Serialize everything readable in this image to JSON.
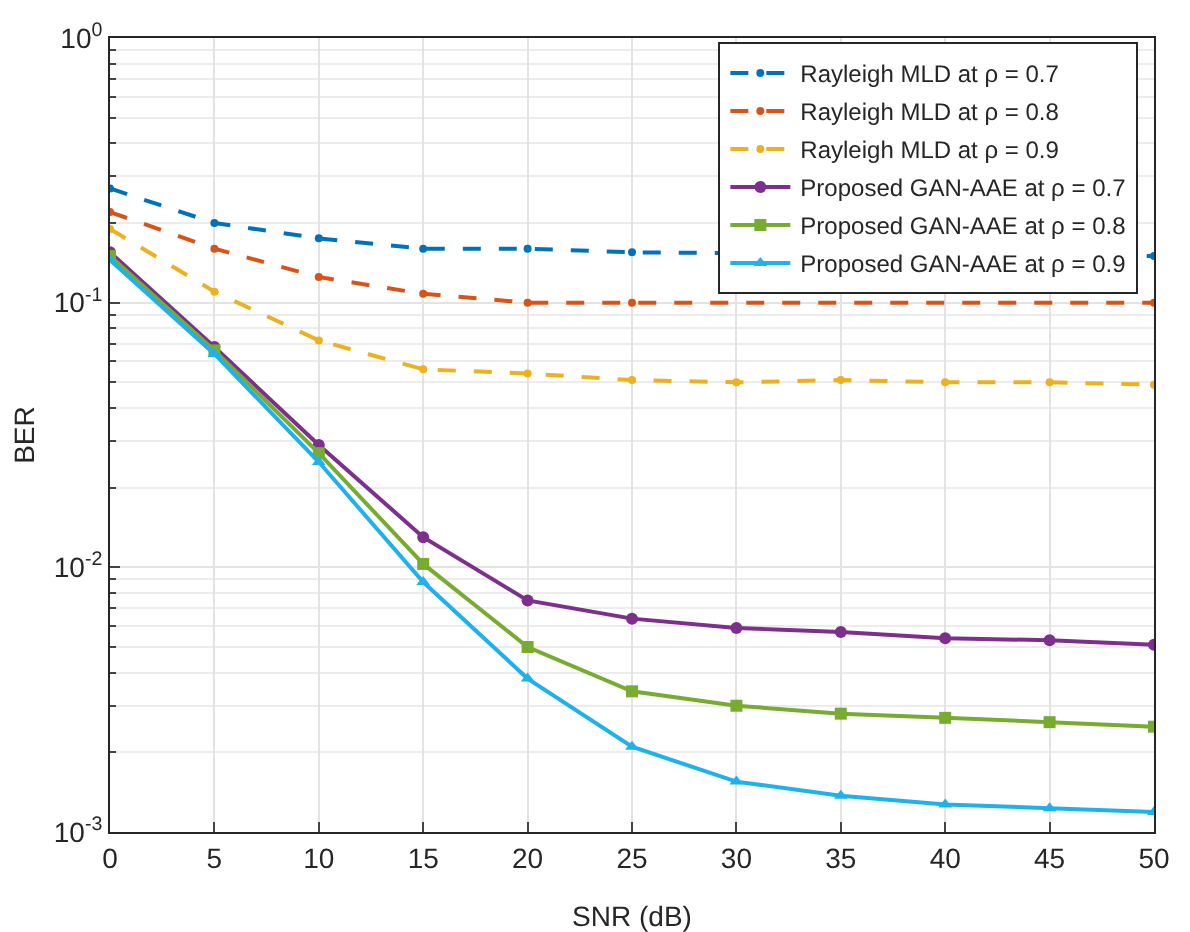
{
  "chart_data": {
    "type": "line",
    "xlabel": "SNR (dB)",
    "ylabel": "BER",
    "log": "y",
    "grid": true,
    "legend": "top right",
    "x": [
      0,
      5,
      10,
      15,
      20,
      25,
      30,
      35,
      40,
      45,
      50
    ],
    "xlim": [
      0,
      50
    ],
    "xticks": [
      0,
      5,
      10,
      15,
      20,
      25,
      30,
      35,
      40,
      45,
      50
    ],
    "ylim": [
      0.001,
      1
    ],
    "yticks": [
      {
        "value": 0.001,
        "label": "10$^{-3}$"
      },
      {
        "value": 0.01,
        "label": "10$^{-2}$"
      },
      {
        "value": 0.1,
        "label": "10$^{-1}$"
      },
      {
        "value": 1,
        "label": "10$^{0}$"
      }
    ],
    "series": [
      {
        "name": "Rayleigh MLD at ρ = 0.7",
        "color": "#0072bd",
        "line_style": "dashed",
        "marker": "circle",
        "values": [
          0.27,
          0.2,
          0.175,
          0.16,
          0.16,
          0.155,
          null,
          null,
          null,
          null,
          0.15
        ]
      },
      {
        "name": "Rayleigh MLD at ρ = 0.8",
        "color": "#d95319",
        "line_style": "dashed",
        "marker": "circle",
        "values": [
          0.22,
          0.16,
          0.125,
          0.108,
          0.1,
          0.1,
          null,
          null,
          null,
          null,
          0.1
        ]
      },
      {
        "name": "Rayleigh MLD at ρ = 0.9",
        "color": "#edb120",
        "line_style": "dashed",
        "marker": "circle",
        "values": [
          0.19,
          0.11,
          0.072,
          0.056,
          0.054,
          0.051,
          0.05,
          0.051,
          0.05,
          0.05,
          0.049
        ]
      },
      {
        "name": "Proposed GAN-AAE at ρ = 0.7",
        "color": "#7e2f8e",
        "line_style": "solid",
        "marker": "circle",
        "values": [
          0.155,
          0.068,
          0.029,
          0.013,
          0.0075,
          0.0064,
          0.0059,
          0.0057,
          0.0054,
          0.0053,
          0.0051
        ]
      },
      {
        "name": "Proposed GAN-AAE at ρ = 0.8",
        "color": "#77ac30",
        "line_style": "solid",
        "marker": "square",
        "values": [
          0.15,
          0.066,
          0.027,
          0.0103,
          0.005,
          0.0034,
          0.003,
          0.0028,
          0.0027,
          0.0026,
          0.0025
        ]
      },
      {
        "name": "Proposed GAN-AAE at ρ = 0.9",
        "color": "#1eb1ec",
        "line_style": "solid",
        "marker": "triangle",
        "values": [
          0.145,
          0.064,
          0.025,
          0.0088,
          0.0038,
          0.0021,
          0.00155,
          0.00137,
          0.00127,
          0.00123,
          0.00119
        ]
      }
    ]
  }
}
